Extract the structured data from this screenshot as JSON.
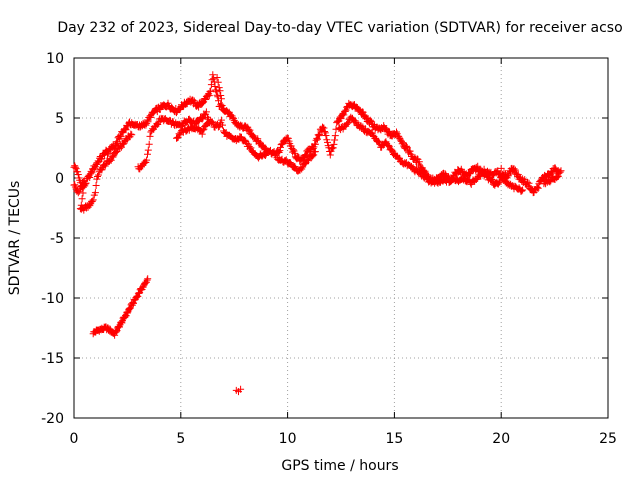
{
  "chart_data": {
    "type": "scatter",
    "title": "Day 232 of 2023, Sidereal Day-to-day VTEC variation (SDTVAR) for receiver acso",
    "xlabel": "GPS time / hours",
    "ylabel": "SDTVAR / TECUs",
    "xlim": [
      0,
      25
    ],
    "ylim": [
      -20,
      10
    ],
    "xticks": [
      0,
      5,
      10,
      15,
      20,
      25
    ],
    "yticks": [
      -20,
      -15,
      -10,
      -5,
      0,
      5,
      10
    ],
    "grid": true,
    "marker": "+",
    "series": [
      {
        "name": "SDTVAR",
        "color": "#ff0000",
        "trace": [
          [
            0.0,
            1.0
          ],
          [
            0.1,
            0.8
          ],
          [
            0.2,
            0.2
          ],
          [
            0.3,
            -0.4
          ],
          [
            0.4,
            -0.8
          ],
          [
            0.5,
            -0.6
          ],
          [
            0.6,
            -0.2
          ],
          [
            0.7,
            0.1
          ],
          [
            0.8,
            0.4
          ],
          [
            0.9,
            0.8
          ],
          [
            1.0,
            1.0
          ],
          [
            1.1,
            1.3
          ],
          [
            1.2,
            1.6
          ],
          [
            1.3,
            1.7
          ],
          [
            1.4,
            2.0
          ],
          [
            1.5,
            2.2
          ],
          [
            1.6,
            2.1
          ],
          [
            1.7,
            2.4
          ],
          [
            1.8,
            2.7
          ],
          [
            1.9,
            2.5
          ],
          [
            2.0,
            3.0
          ],
          [
            2.1,
            3.3
          ],
          [
            2.2,
            3.6
          ],
          [
            2.3,
            3.9
          ],
          [
            2.4,
            4.1
          ],
          [
            2.5,
            4.4
          ],
          [
            2.6,
            4.5
          ],
          [
            2.7,
            4.6
          ],
          [
            2.8,
            4.3
          ],
          [
            2.9,
            4.5
          ],
          [
            3.0,
            4.4
          ],
          [
            3.1,
            4.2
          ],
          [
            3.2,
            4.4
          ],
          [
            3.3,
            4.5
          ],
          [
            3.4,
            4.6
          ],
          [
            3.6,
            5.2
          ],
          [
            3.8,
            5.6
          ],
          [
            4.0,
            5.8
          ],
          [
            4.2,
            6.0
          ],
          [
            4.4,
            6.1
          ],
          [
            4.6,
            5.8
          ],
          [
            4.8,
            5.6
          ],
          [
            5.0,
            5.9
          ],
          [
            5.2,
            6.2
          ],
          [
            5.4,
            6.5
          ],
          [
            5.6,
            6.3
          ],
          [
            5.8,
            6.0
          ],
          [
            6.0,
            6.3
          ],
          [
            6.2,
            6.7
          ],
          [
            6.4,
            7.2
          ],
          [
            6.5,
            8.5
          ],
          [
            6.6,
            7.6
          ],
          [
            6.7,
            6.9
          ],
          [
            6.8,
            6.1
          ],
          [
            7.0,
            5.8
          ],
          [
            7.2,
            5.5
          ],
          [
            7.4,
            5.0
          ],
          [
            7.6,
            4.5
          ],
          [
            7.8,
            4.3
          ],
          [
            8.0,
            4.2
          ],
          [
            8.2,
            4.0
          ],
          [
            8.4,
            3.5
          ],
          [
            8.6,
            3.1
          ],
          [
            8.8,
            2.7
          ],
          [
            9.0,
            2.4
          ],
          [
            9.2,
            2.2
          ],
          [
            9.4,
            2.0
          ],
          [
            9.6,
            2.2
          ],
          [
            9.8,
            3.1
          ],
          [
            10.0,
            3.3
          ],
          [
            10.2,
            2.4
          ],
          [
            10.4,
            1.8
          ],
          [
            10.6,
            1.4
          ],
          [
            10.8,
            1.9
          ],
          [
            11.0,
            2.3
          ],
          [
            11.2,
            2.6
          ],
          [
            11.4,
            3.3
          ],
          [
            11.6,
            4.2
          ],
          [
            11.7,
            4.1
          ],
          [
            11.9,
            2.8
          ],
          [
            12.0,
            2.0
          ],
          [
            12.2,
            3.0
          ],
          [
            12.3,
            4.5
          ],
          [
            12.5,
            5.0
          ],
          [
            12.7,
            5.6
          ],
          [
            12.9,
            6.2
          ],
          [
            13.1,
            6.0
          ],
          [
            13.3,
            5.7
          ],
          [
            13.5,
            5.4
          ],
          [
            13.7,
            4.9
          ],
          [
            13.9,
            4.6
          ],
          [
            14.1,
            4.2
          ],
          [
            14.3,
            4.0
          ],
          [
            14.5,
            4.2
          ],
          [
            14.7,
            3.8
          ],
          [
            14.9,
            3.5
          ],
          [
            15.1,
            3.8
          ],
          [
            15.3,
            3.2
          ],
          [
            15.5,
            2.6
          ],
          [
            15.7,
            2.2
          ],
          [
            15.9,
            1.6
          ],
          [
            16.1,
            1.4
          ],
          [
            16.3,
            0.8
          ],
          [
            16.5,
            0.3
          ],
          [
            16.7,
            -0.1
          ],
          [
            16.9,
            -0.2
          ],
          [
            17.1,
            0.0
          ],
          [
            17.3,
            0.3
          ],
          [
            17.5,
            0.0
          ],
          [
            17.7,
            -0.1
          ],
          [
            17.9,
            0.5
          ],
          [
            18.1,
            0.7
          ],
          [
            18.3,
            0.2
          ],
          [
            18.5,
            0.4
          ],
          [
            18.7,
            0.7
          ],
          [
            18.9,
            0.8
          ],
          [
            19.1,
            0.4
          ],
          [
            19.3,
            0.2
          ],
          [
            19.5,
            -0.2
          ],
          [
            19.7,
            -0.5
          ],
          [
            19.9,
            -0.3
          ],
          [
            20.1,
            0.3
          ],
          [
            20.3,
            0.1
          ],
          [
            20.5,
            0.9
          ],
          [
            20.7,
            0.4
          ],
          [
            20.9,
            -0.1
          ],
          [
            21.1,
            -0.3
          ],
          [
            21.3,
            -0.6
          ],
          [
            21.5,
            -1.2
          ],
          [
            21.7,
            -0.8
          ],
          [
            21.9,
            -0.1
          ],
          [
            22.1,
            0.2
          ],
          [
            22.3,
            0.3
          ],
          [
            22.5,
            0.8
          ],
          [
            22.7,
            0.4
          ]
        ],
        "secondary_trace": [
          [
            0.0,
            -0.5
          ],
          [
            0.1,
            -0.9
          ],
          [
            0.2,
            -1.3
          ],
          [
            0.3,
            -0.9
          ],
          [
            0.4,
            -0.4
          ],
          [
            0.5,
            -0.2
          ],
          [
            0.3,
            -2.7
          ],
          [
            0.5,
            -2.5
          ],
          [
            0.7,
            -2.3
          ],
          [
            0.9,
            -1.8
          ],
          [
            1.0,
            -1.1
          ],
          [
            1.1,
            0.2
          ],
          [
            1.3,
            0.8
          ],
          [
            1.5,
            1.2
          ],
          [
            1.7,
            1.5
          ],
          [
            1.9,
            2.0
          ],
          [
            2.1,
            2.5
          ],
          [
            2.3,
            2.8
          ],
          [
            2.5,
            3.4
          ],
          [
            2.7,
            3.6
          ],
          [
            3.0,
            0.8
          ],
          [
            3.2,
            1.0
          ],
          [
            3.4,
            1.5
          ],
          [
            3.6,
            3.8
          ],
          [
            3.8,
            4.3
          ],
          [
            4.0,
            4.8
          ],
          [
            4.2,
            4.9
          ],
          [
            4.4,
            4.7
          ],
          [
            4.6,
            4.6
          ],
          [
            4.8,
            4.4
          ],
          [
            5.0,
            4.4
          ],
          [
            5.2,
            4.7
          ],
          [
            5.4,
            4.9
          ],
          [
            5.6,
            4.6
          ],
          [
            5.8,
            4.8
          ],
          [
            6.0,
            5.0
          ],
          [
            6.2,
            5.5
          ],
          [
            6.3,
            4.9
          ],
          [
            4.8,
            3.3
          ],
          [
            5.0,
            3.8
          ],
          [
            5.2,
            4.0
          ],
          [
            5.4,
            4.1
          ],
          [
            5.6,
            4.2
          ],
          [
            5.8,
            4.1
          ],
          [
            6.0,
            3.8
          ],
          [
            6.2,
            4.4
          ],
          [
            6.4,
            4.7
          ],
          [
            6.6,
            4.3
          ],
          [
            6.8,
            4.4
          ],
          [
            6.9,
            4.9
          ],
          [
            7.0,
            3.9
          ],
          [
            7.2,
            3.5
          ],
          [
            7.4,
            3.3
          ],
          [
            7.6,
            3.2
          ],
          [
            7.8,
            3.4
          ],
          [
            8.0,
            3.0
          ],
          [
            8.2,
            2.6
          ],
          [
            8.4,
            2.2
          ],
          [
            8.6,
            1.8
          ],
          [
            8.8,
            1.9
          ],
          [
            9.0,
            2.0
          ],
          [
            6.7,
            8.3
          ],
          [
            6.8,
            7.6
          ],
          [
            6.9,
            6.6
          ],
          [
            9.5,
            1.7
          ],
          [
            9.7,
            1.5
          ],
          [
            9.9,
            1.4
          ],
          [
            10.1,
            1.2
          ],
          [
            10.3,
            0.9
          ],
          [
            10.5,
            0.6
          ],
          [
            10.7,
            0.9
          ],
          [
            10.9,
            1.4
          ],
          [
            11.1,
            1.8
          ],
          [
            11.3,
            2.2
          ],
          [
            12.4,
            4.0
          ],
          [
            12.6,
            4.2
          ],
          [
            12.8,
            4.6
          ],
          [
            13.0,
            5.0
          ],
          [
            13.2,
            4.6
          ],
          [
            13.4,
            4.3
          ],
          [
            13.6,
            4.0
          ],
          [
            13.8,
            3.8
          ],
          [
            14.0,
            3.6
          ],
          [
            14.4,
            2.6
          ],
          [
            14.6,
            2.9
          ],
          [
            14.8,
            2.4
          ],
          [
            15.0,
            2.0
          ],
          [
            15.2,
            1.6
          ],
          [
            15.4,
            1.3
          ],
          [
            15.6,
            1.1
          ],
          [
            15.8,
            0.9
          ],
          [
            16.0,
            0.6
          ],
          [
            16.2,
            0.4
          ],
          [
            16.4,
            0.1
          ],
          [
            16.6,
            -0.2
          ],
          [
            16.8,
            -0.4
          ],
          [
            17.0,
            -0.4
          ],
          [
            17.2,
            -0.3
          ],
          [
            17.4,
            -0.2
          ],
          [
            17.6,
            -0.3
          ],
          [
            17.8,
            -0.1
          ],
          [
            18.0,
            -0.2
          ],
          [
            18.2,
            0.0
          ],
          [
            18.4,
            -0.2
          ],
          [
            18.6,
            -0.4
          ],
          [
            18.8,
            -0.1
          ],
          [
            19.0,
            0.2
          ],
          [
            19.2,
            0.6
          ],
          [
            19.4,
            0.5
          ],
          [
            19.6,
            0.3
          ],
          [
            19.8,
            0.6
          ],
          [
            20.2,
            -0.4
          ],
          [
            20.4,
            -0.6
          ],
          [
            20.6,
            -0.8
          ],
          [
            20.8,
            -0.9
          ],
          [
            21.0,
            -1.0
          ],
          [
            22.0,
            -0.4
          ],
          [
            22.2,
            -0.3
          ],
          [
            22.4,
            0.0
          ],
          [
            22.6,
            0.0
          ],
          [
            22.8,
            0.6
          ]
        ],
        "low_segment": [
          [
            0.9,
            -12.9
          ],
          [
            1.1,
            -12.7
          ],
          [
            1.3,
            -12.6
          ],
          [
            1.5,
            -12.5
          ],
          [
            1.7,
            -12.7
          ],
          [
            1.9,
            -13.0
          ],
          [
            2.1,
            -12.4
          ],
          [
            2.3,
            -11.8
          ],
          [
            2.5,
            -11.2
          ],
          [
            2.7,
            -10.6
          ],
          [
            2.9,
            -10.0
          ],
          [
            3.1,
            -9.4
          ],
          [
            3.3,
            -8.9
          ],
          [
            3.45,
            -8.4
          ]
        ],
        "isolated": [
          [
            7.6,
            -17.7
          ],
          [
            7.8,
            -17.6
          ],
          [
            7.7,
            -17.8
          ],
          [
            14.4,
            2.7
          ],
          [
            18.0,
            0.5
          ],
          [
            20.0,
            0.8
          ]
        ]
      }
    ]
  }
}
